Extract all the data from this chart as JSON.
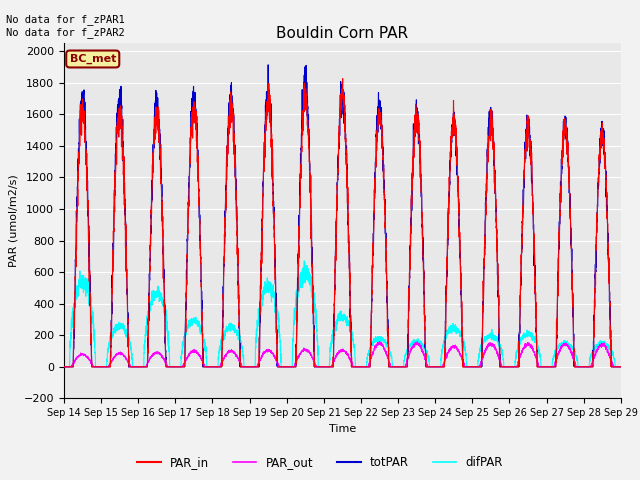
{
  "title": "Bouldin Corn PAR",
  "ylabel": "PAR (umol/m2/s)",
  "xlabel": "Time",
  "ylim": [
    -200,
    2050
  ],
  "bg_color": "#e8e8e8",
  "fig_bg_color": "#f2f2f2",
  "annotation_text": "No data for f_zPAR1\nNo data for f_zPAR2",
  "legend_label": "BC_met",
  "x_tick_labels": [
    "Sep 14",
    "Sep 15",
    "Sep 16",
    "Sep 17",
    "Sep 18",
    "Sep 19",
    "Sep 20",
    "Sep 21",
    "Sep 22",
    "Sep 23",
    "Sep 24",
    "Sep 25",
    "Sep 26",
    "Sep 27",
    "Sep 28",
    "Sep 29"
  ],
  "colors": {
    "PAR_in": "#ff0000",
    "PAR_out": "#ff00ff",
    "totPAR": "#0000cc",
    "difPAR": "#00ffff"
  },
  "line_widths": {
    "PAR_in": 0.8,
    "PAR_out": 0.8,
    "totPAR": 0.8,
    "difPAR": 0.8
  },
  "day_peaks_totPAR": [
    1720,
    1710,
    1660,
    1700,
    1700,
    1720,
    1800,
    1720,
    1640,
    1600,
    1540,
    1580,
    1530,
    1530,
    1490
  ],
  "day_peaks_PAR_in": [
    1620,
    1600,
    1590,
    1640,
    1650,
    1680,
    1700,
    1720,
    1600,
    1590,
    1560,
    1530,
    1520,
    1520,
    1480
  ],
  "day_peaks_PAR_out": [
    80,
    85,
    90,
    100,
    100,
    105,
    110,
    105,
    150,
    150,
    130,
    145,
    145,
    145,
    140
  ],
  "day_peaks_difPAR": [
    540,
    260,
    460,
    290,
    250,
    510,
    600,
    320,
    180,
    160,
    250,
    200,
    210,
    150,
    150
  ],
  "yticks": [
    -200,
    0,
    200,
    400,
    600,
    800,
    1000,
    1200,
    1400,
    1600,
    1800,
    2000
  ],
  "n_days": 15,
  "pts_per_day": 288
}
